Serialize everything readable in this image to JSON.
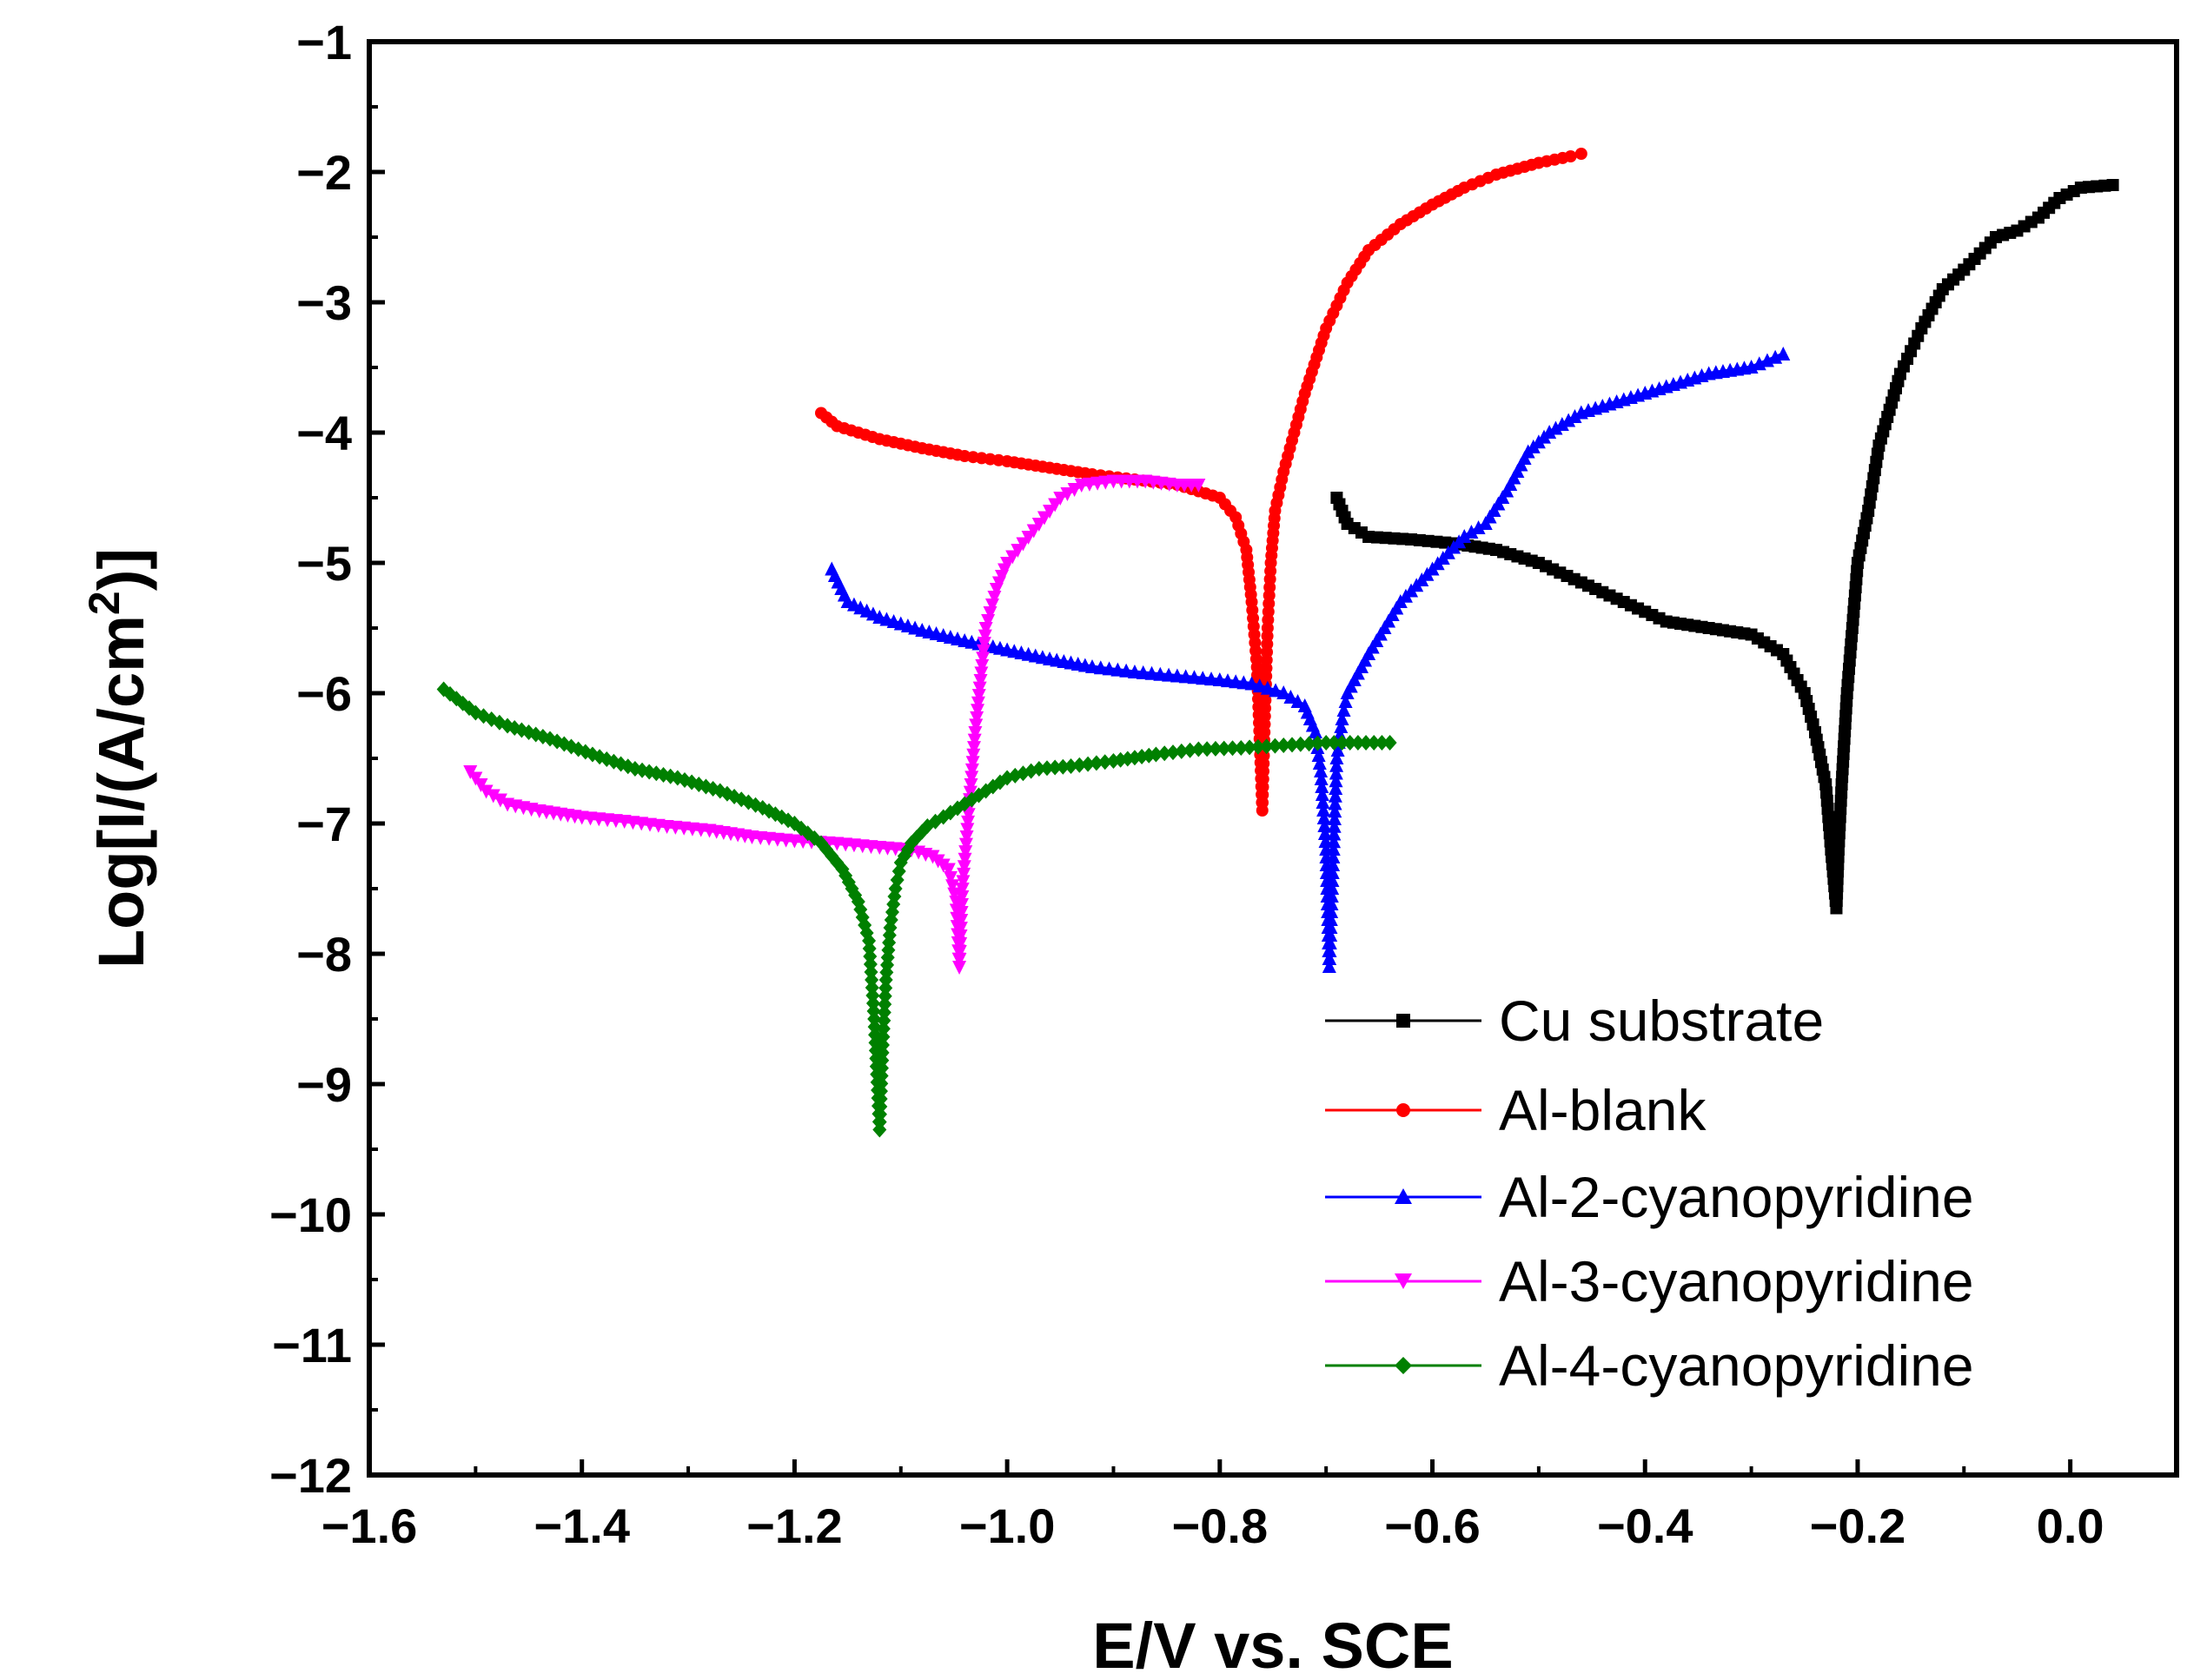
{
  "chart_data": {
    "type": "line",
    "title": "",
    "xlabel": "E/V vs. SCE",
    "ylabel_main": "Log[I/(A/cm",
    "ylabel_sup": "2",
    "ylabel_tail": ")]",
    "xlim": [
      -1.6,
      0.1
    ],
    "ylim": [
      -12,
      -1
    ],
    "xticks": [
      -1.6,
      -1.4,
      -1.2,
      -1.0,
      -0.8,
      -0.6,
      -0.4,
      -0.2,
      0.0
    ],
    "xtick_labels": [
      "−1.6",
      "−1.4",
      "−1.2",
      "−1.0",
      "−0.8",
      "−0.6",
      "−0.4",
      "−0.2",
      "0.0"
    ],
    "yticks": [
      -1,
      -2,
      -3,
      -4,
      -5,
      -6,
      -7,
      -8,
      -9,
      -10,
      -11,
      -12
    ],
    "ytick_labels": [
      "−1",
      "−2",
      "−3",
      "−4",
      "−5",
      "−6",
      "−7",
      "−8",
      "−9",
      "−10",
      "−11",
      "−12"
    ],
    "legend_position": "bottom-right",
    "series": [
      {
        "name": "Cu substrate",
        "color": "#000000",
        "marker": "square",
        "x": [
          -0.69,
          -0.68,
          -0.66,
          -0.62,
          -0.58,
          -0.54,
          -0.5,
          -0.46,
          -0.42,
          -0.38,
          -0.34,
          -0.3,
          -0.27,
          -0.25,
          -0.24,
          -0.23,
          -0.225,
          -0.22,
          -0.218,
          -0.215,
          -0.21,
          -0.205,
          -0.2,
          -0.19,
          -0.18,
          -0.16,
          -0.14,
          -0.12,
          -0.1,
          -0.07,
          -0.05,
          -0.03,
          -0.01,
          0.01,
          0.04
        ],
        "y": [
          -4.5,
          -4.7,
          -4.8,
          -4.82,
          -4.85,
          -4.9,
          -5.0,
          -5.15,
          -5.3,
          -5.45,
          -5.5,
          -5.55,
          -5.7,
          -6.0,
          -6.3,
          -6.7,
          -7.2,
          -7.65,
          -7.2,
          -6.7,
          -6.0,
          -5.5,
          -5.0,
          -4.6,
          -4.1,
          -3.55,
          -3.2,
          -2.9,
          -2.75,
          -2.5,
          -2.45,
          -2.35,
          -2.2,
          -2.12,
          -2.1
        ]
      },
      {
        "name": "Al-blank",
        "color": "#ff0000",
        "marker": "circle",
        "x": [
          -1.175,
          -1.16,
          -1.12,
          -1.08,
          -1.04,
          -1.0,
          -0.96,
          -0.92,
          -0.88,
          -0.84,
          -0.82,
          -0.8,
          -0.785,
          -0.775,
          -0.77,
          -0.765,
          -0.76,
          -0.758,
          -0.755,
          -0.752,
          -0.748,
          -0.74,
          -0.73,
          -0.72,
          -0.7,
          -0.68,
          -0.66,
          -0.63,
          -0.6,
          -0.57,
          -0.54,
          -0.5,
          -0.47,
          -0.46
        ],
        "y": [
          -3.85,
          -3.95,
          -4.05,
          -4.12,
          -4.18,
          -4.22,
          -4.27,
          -4.32,
          -4.36,
          -4.4,
          -4.45,
          -4.5,
          -4.65,
          -4.9,
          -5.3,
          -5.8,
          -6.9,
          -6.3,
          -5.5,
          -5.0,
          -4.6,
          -4.3,
          -4.0,
          -3.7,
          -3.2,
          -2.85,
          -2.6,
          -2.4,
          -2.25,
          -2.12,
          -2.02,
          -1.93,
          -1.88,
          -1.86
        ]
      },
      {
        "name": "Al-2-cyanopyridine",
        "color": "#0000ff",
        "marker": "triangle-up",
        "x": [
          -1.165,
          -1.15,
          -1.12,
          -1.08,
          -1.04,
          -1.0,
          -0.96,
          -0.92,
          -0.88,
          -0.84,
          -0.8,
          -0.77,
          -0.74,
          -0.72,
          -0.71,
          -0.705,
          -0.7,
          -0.697,
          -0.693,
          -0.69,
          -0.685,
          -0.68,
          -0.66,
          -0.63,
          -0.6,
          -0.57,
          -0.55,
          -0.53,
          -0.51,
          -0.49,
          -0.46,
          -0.42,
          -0.38,
          -0.34,
          -0.3,
          -0.27
        ],
        "y": [
          -5.05,
          -5.3,
          -5.42,
          -5.52,
          -5.6,
          -5.67,
          -5.74,
          -5.8,
          -5.84,
          -5.87,
          -5.9,
          -5.93,
          -6.0,
          -6.1,
          -6.3,
          -6.6,
          -7.2,
          -8.1,
          -7.2,
          -6.5,
          -6.2,
          -6.0,
          -5.7,
          -5.3,
          -5.05,
          -4.8,
          -4.7,
          -4.45,
          -4.15,
          -4.0,
          -3.85,
          -3.75,
          -3.65,
          -3.55,
          -3.5,
          -3.4
        ]
      },
      {
        "name": "Al-3-cyanopyridine",
        "color": "#ff00ff",
        "marker": "triangle-down",
        "x": [
          -1.505,
          -1.49,
          -1.47,
          -1.44,
          -1.4,
          -1.36,
          -1.32,
          -1.28,
          -1.24,
          -1.2,
          -1.16,
          -1.12,
          -1.09,
          -1.07,
          -1.055,
          -1.048,
          -1.045,
          -1.042,
          -1.038,
          -1.034,
          -1.03,
          -1.025,
          -1.02,
          -1.01,
          -1.0,
          -0.99,
          -0.97,
          -0.95,
          -0.93,
          -0.9,
          -0.87,
          -0.84,
          -0.82
        ],
        "y": [
          -6.6,
          -6.75,
          -6.85,
          -6.9,
          -6.95,
          -6.98,
          -7.02,
          -7.05,
          -7.1,
          -7.13,
          -7.15,
          -7.18,
          -7.2,
          -7.25,
          -7.35,
          -7.6,
          -8.1,
          -7.5,
          -7.1,
          -6.7,
          -6.3,
          -5.9,
          -5.5,
          -5.2,
          -5.0,
          -4.9,
          -4.7,
          -4.5,
          -4.4,
          -4.37,
          -4.37,
          -4.4,
          -4.4
        ]
      },
      {
        "name": "Al-4-cyanopyridine",
        "color": "#008000",
        "marker": "diamond",
        "x": [
          -1.53,
          -1.5,
          -1.47,
          -1.43,
          -1.39,
          -1.35,
          -1.31,
          -1.27,
          -1.23,
          -1.2,
          -1.175,
          -1.155,
          -1.14,
          -1.13,
          -1.125,
          -1.12,
          -1.117,
          -1.114,
          -1.11,
          -1.105,
          -1.1,
          -1.09,
          -1.075,
          -1.06,
          -1.04,
          -1.02,
          -1.0,
          -0.97,
          -0.94,
          -0.9,
          -0.86,
          -0.82,
          -0.78,
          -0.74,
          -0.7,
          -0.67,
          -0.64
        ],
        "y": [
          -5.97,
          -6.15,
          -6.25,
          -6.35,
          -6.47,
          -6.58,
          -6.65,
          -6.75,
          -6.88,
          -7.0,
          -7.15,
          -7.35,
          -7.6,
          -7.9,
          -8.5,
          -9.35,
          -8.7,
          -8.2,
          -7.8,
          -7.5,
          -7.3,
          -7.15,
          -7.02,
          -6.95,
          -6.85,
          -6.75,
          -6.65,
          -6.58,
          -6.56,
          -6.52,
          -6.47,
          -6.43,
          -6.42,
          -6.4,
          -6.38,
          -6.38,
          -6.38
        ]
      }
    ]
  }
}
